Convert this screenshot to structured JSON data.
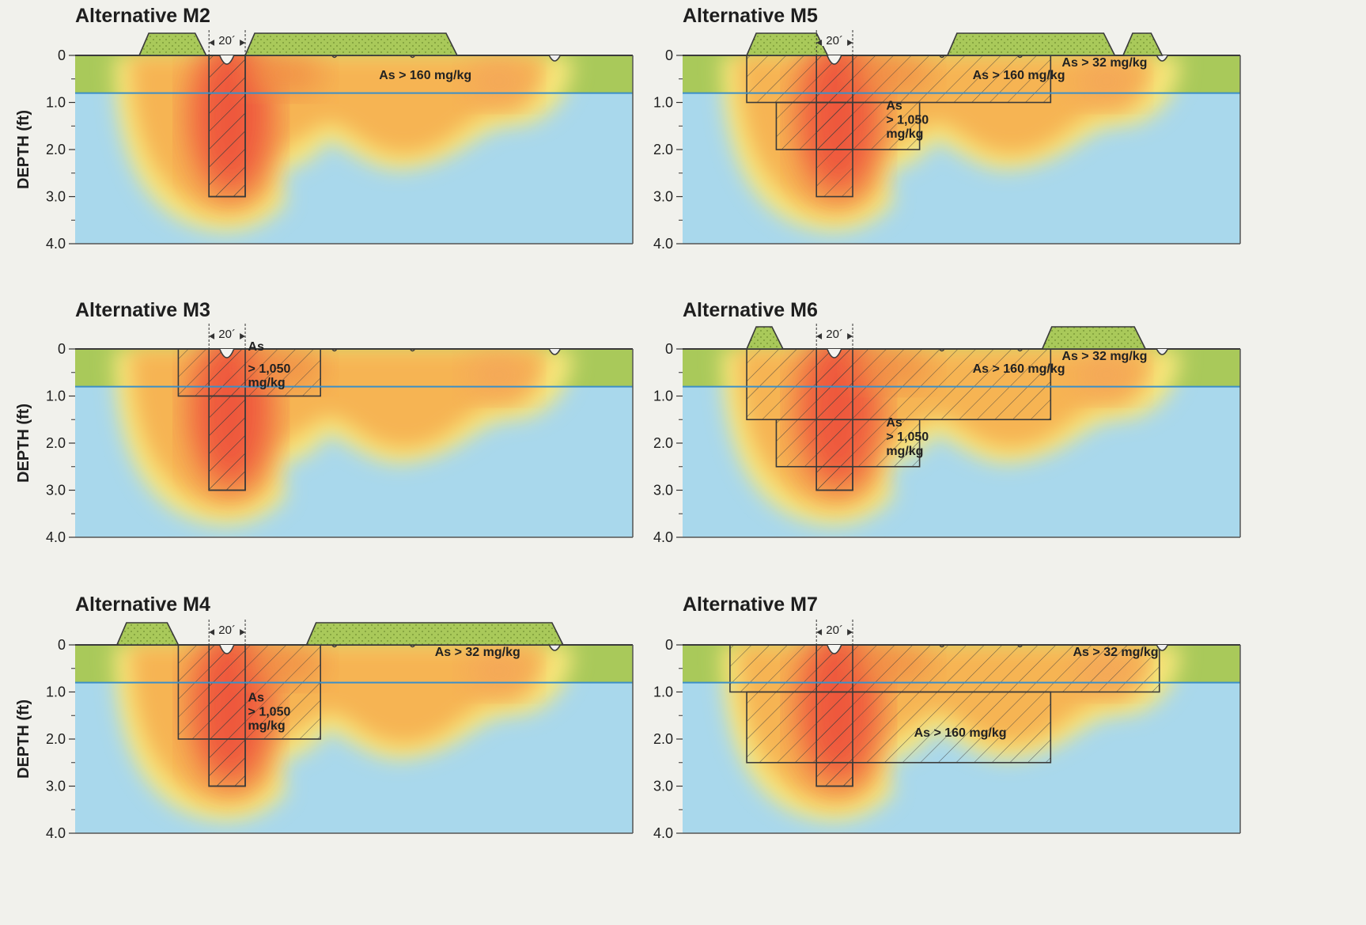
{
  "figure": {
    "y_axis_label": "DEPTH (ft)",
    "y_ticks": [
      "0",
      "1.0",
      "2.0",
      "3.0",
      "4.0"
    ],
    "depth_range_ft": [
      0,
      4
    ],
    "water_table_depth_ft": 0.8,
    "ditch_width_label": "20´"
  },
  "colors": {
    "water": "#a9d8ec",
    "ground": "#a9c95a",
    "low": "#f7e77c",
    "medium": "#f6b453",
    "high": "#ee4f3a",
    "outline": "#3a3a3a",
    "water_line": "#3c8fc6"
  },
  "panels": [
    {
      "title": "Alternative M2",
      "labels": [
        {
          "text": "As > 160 mg/kg",
          "dx": 0.545,
          "dy": 0.5
        }
      ],
      "zones": [
        {
          "x0": 0.24,
          "x1": 0.305,
          "d0": 0,
          "d1": 3.0
        }
      ]
    },
    {
      "title": "Alternative M5",
      "labels": [
        {
          "text": "As > 32 mg/kg",
          "dx": 0.68,
          "dy": 0.4
        },
        {
          "text": "As > 160 mg/kg",
          "dx": 0.52,
          "dy": 0.5
        },
        {
          "text": "As",
          "dx": 0.365,
          "dy": 1.15
        },
        {
          "text": "> 1,050",
          "dx": 0.365,
          "dy": 1.45
        },
        {
          "text": "mg/kg",
          "dx": 0.365,
          "dy": 1.75
        }
      ],
      "zones": [
        {
          "x0": 0.115,
          "x1": 0.66,
          "d0": 0,
          "d1": 1.0
        },
        {
          "x0": 0.168,
          "x1": 0.425,
          "d0": 1.0,
          "d1": 2.0
        },
        {
          "x0": 0.24,
          "x1": 0.305,
          "d0": 1.0,
          "d1": 2.0
        }
      ]
    },
    {
      "title": "Alternative M3",
      "labels": [
        {
          "text": "As",
          "dx": 0.31,
          "dy": 0.2
        },
        {
          "text": "> 1,050",
          "dx": 0.31,
          "dy": 0.5
        },
        {
          "text": "mg/kg",
          "dx": 0.31,
          "dy": 0.8
        }
      ],
      "zones": [
        {
          "x0": 0.185,
          "x1": 0.44,
          "d0": 0,
          "d1": 1.0
        },
        {
          "x0": 0.24,
          "x1": 0.305,
          "d0": 1.0,
          "d1": 3.0
        }
      ]
    },
    {
      "title": "Alternative M6",
      "labels": [
        {
          "text": "As > 32 mg/kg",
          "dx": 0.68,
          "dy": 0.4
        },
        {
          "text": "As > 160 mg/kg",
          "dx": 0.52,
          "dy": 0.5
        },
        {
          "text": "As",
          "dx": 0.365,
          "dy": 1.65
        },
        {
          "text": "> 1,050",
          "dx": 0.365,
          "dy": 1.95
        },
        {
          "text": "mg/kg",
          "dx": 0.365,
          "dy": 2.25
        }
      ],
      "zones": [
        {
          "x0": 0.115,
          "x1": 0.66,
          "d0": 0,
          "d1": 1.5
        },
        {
          "x0": 0.168,
          "x1": 0.425,
          "d0": 1.5,
          "d1": 2.5
        },
        {
          "x0": 0.24,
          "x1": 0.305,
          "d0": 2.5,
          "d1": 3.0
        }
      ]
    },
    {
      "title": "Alternative M4",
      "labels": [
        {
          "text": "As > 32 mg/kg",
          "dx": 0.645,
          "dy": 0.4
        },
        {
          "text": "As",
          "dx": 0.31,
          "dy": 1.2
        },
        {
          "text": "> 1,050",
          "dx": 0.31,
          "dy": 1.5
        },
        {
          "text": "mg/kg",
          "dx": 0.31,
          "dy": 1.8
        }
      ],
      "zones": [
        {
          "x0": 0.185,
          "x1": 0.44,
          "d0": 0,
          "d1": 2.0
        },
        {
          "x0": 0.24,
          "x1": 0.305,
          "d0": 2.0,
          "d1": 3.0
        }
      ]
    },
    {
      "title": "Alternative M7",
      "labels": [
        {
          "text": "As > 32 mg/kg",
          "dx": 0.7,
          "dy": 0.4
        },
        {
          "text": "As > 160 mg/kg",
          "dx": 0.415,
          "dy": 1.95
        }
      ],
      "zones": [
        {
          "x0": 0.085,
          "x1": 0.855,
          "d0": 0,
          "d1": 1.0
        },
        {
          "x0": 0.115,
          "x1": 0.66,
          "d0": 1.0,
          "d1": 2.5
        },
        {
          "x0": 0.24,
          "x1": 0.305,
          "d0": 2.5,
          "d1": 3.0
        }
      ]
    }
  ]
}
